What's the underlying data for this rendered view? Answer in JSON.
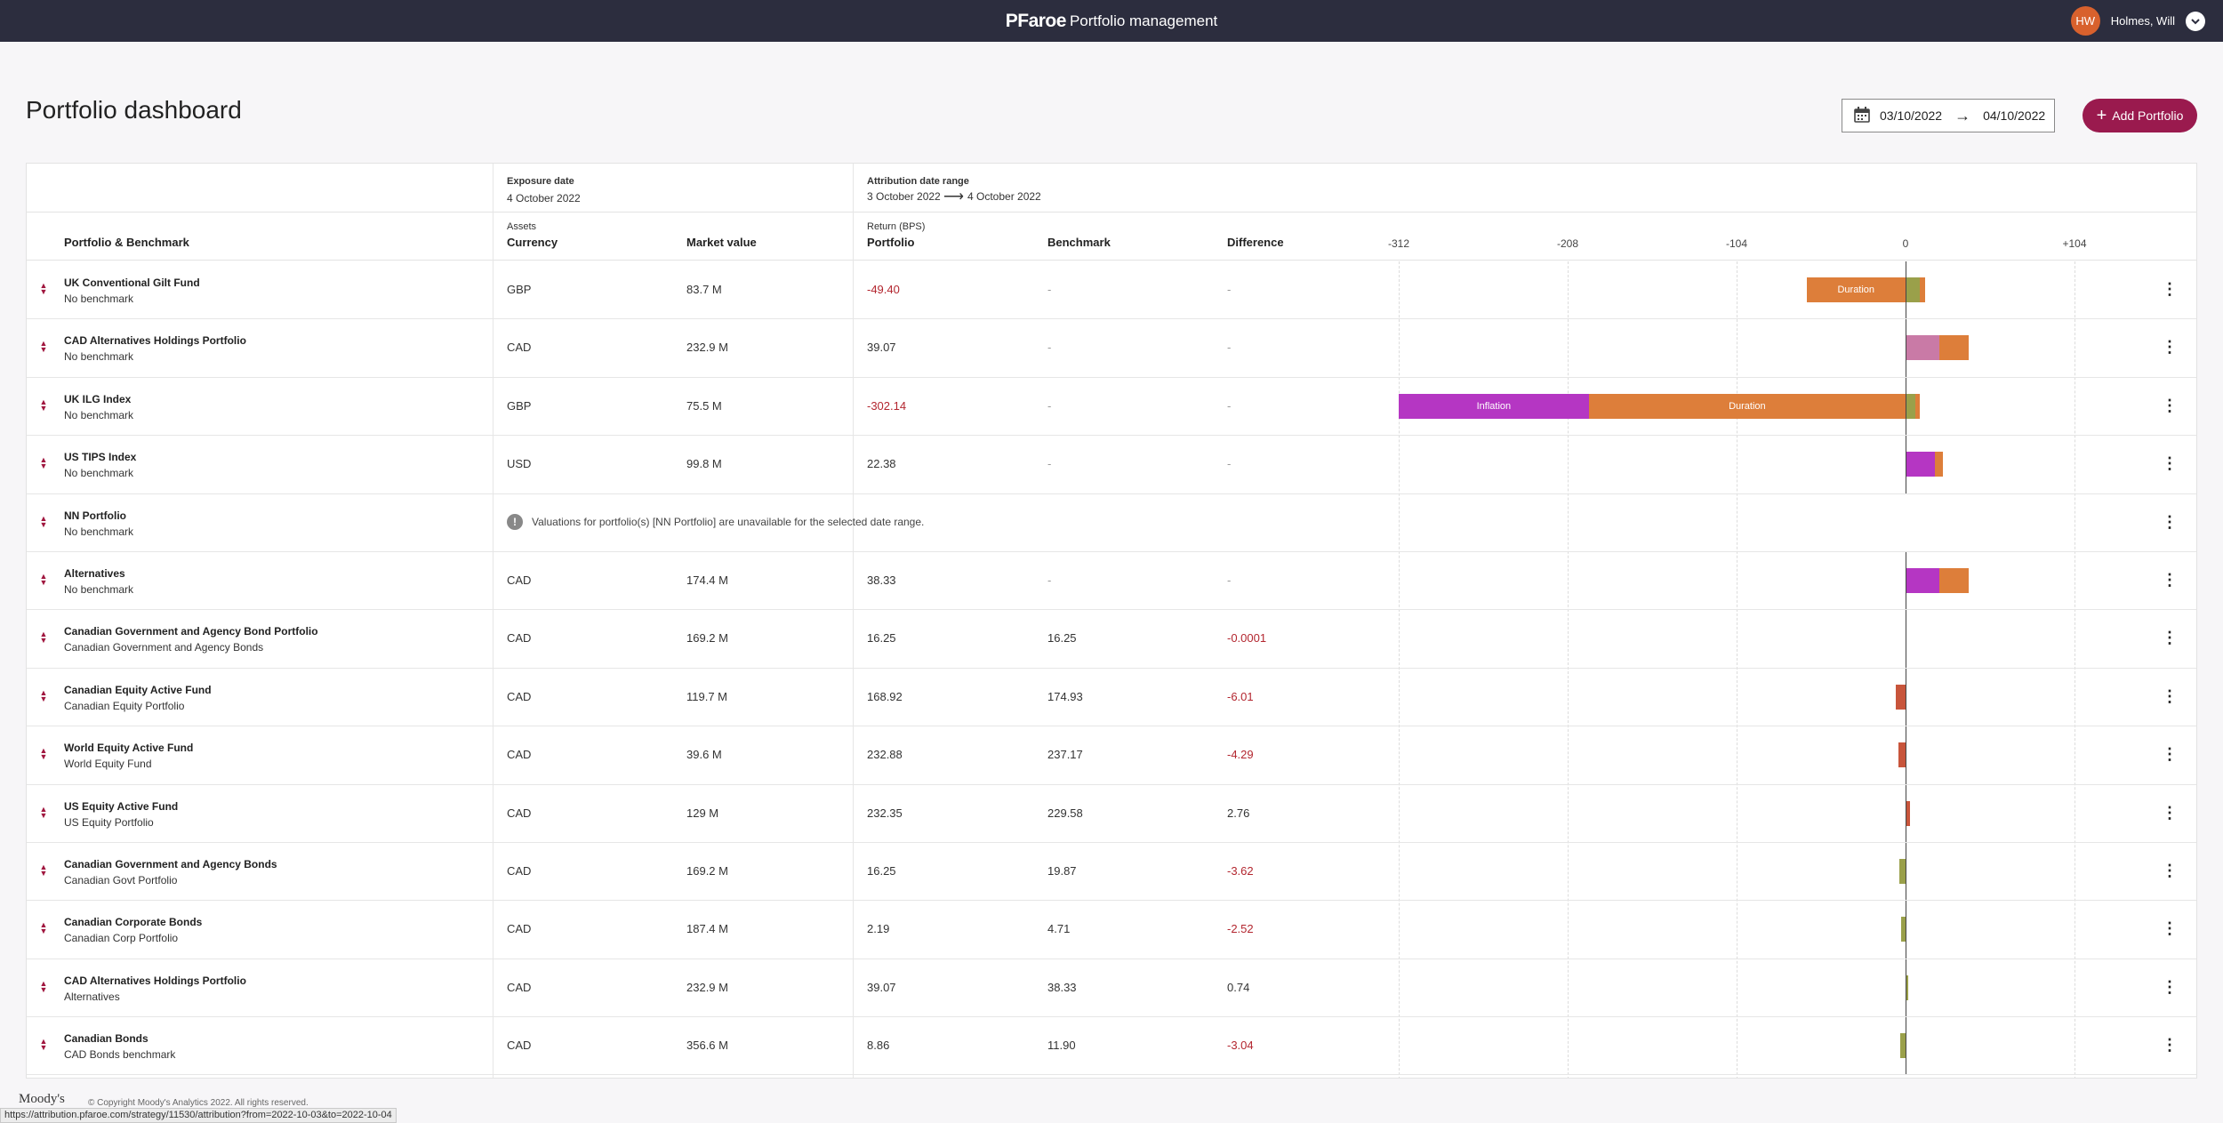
{
  "topbar": {
    "logo": "PFaroe",
    "title": "Portfolio management",
    "user_initials": "HW",
    "user_name": "Holmes, Will"
  },
  "page": {
    "title": "Portfolio dashboard"
  },
  "date_range": {
    "from": "03/10/2022",
    "to": "04/10/2022"
  },
  "add_button": "Add Portfolio",
  "header": {
    "exposure_label": "Exposure date",
    "exposure_date": "4 October 2022",
    "attribution_label": "Attribution date range",
    "attribution_from": "3 October 2022",
    "attribution_to": "4 October 2022",
    "portfolio_benchmark": "Portfolio & Benchmark",
    "assets": "Assets",
    "currency": "Currency",
    "market_value": "Market value",
    "return_bps": "Return (BPS)",
    "portfolio": "Portfolio",
    "benchmark": "Benchmark",
    "difference": "Difference",
    "ticks": [
      "-312",
      "-208",
      "-104",
      "0",
      "+104"
    ]
  },
  "colors": {
    "inflation": "#b536c3",
    "duration": "#dd7e3a",
    "pink": "#c97aa6",
    "red": "#c8553b",
    "olive": "#9aa04a",
    "accent": "#9a1a4e"
  },
  "rows": [
    {
      "name": "UK Conventional Gilt Fund",
      "bench": "No benchmark",
      "currency": "GBP",
      "mv": "83.7 M",
      "port": "-49.40",
      "bm": "-",
      "diff": "-",
      "port_neg": true,
      "diff_neg": false,
      "bars": [
        {
          "start": -61,
          "end": 0,
          "color": "duration",
          "label": "Duration"
        },
        {
          "start": 0,
          "end": 9,
          "color": "olive",
          "label": ""
        },
        {
          "start": 9,
          "end": 12,
          "color": "duration",
          "label": ""
        }
      ]
    },
    {
      "name": "CAD Alternatives Holdings Portfolio",
      "bench": "No benchmark",
      "currency": "CAD",
      "mv": "232.9 M",
      "port": "39.07",
      "bm": "-",
      "diff": "-",
      "port_neg": false,
      "diff_neg": false,
      "bars": [
        {
          "start": 0,
          "end": 21,
          "color": "pink",
          "label": ""
        },
        {
          "start": 21,
          "end": 39,
          "color": "duration",
          "label": ""
        }
      ]
    },
    {
      "name": "UK ILG Index",
      "bench": "No benchmark",
      "currency": "GBP",
      "mv": "75.5 M",
      "port": "-302.14",
      "bm": "-",
      "diff": "-",
      "port_neg": true,
      "diff_neg": false,
      "bars": [
        {
          "start": -312,
          "end": -195,
          "color": "inflation",
          "label": "Inflation"
        },
        {
          "start": -195,
          "end": 0,
          "color": "duration",
          "label": "Duration"
        },
        {
          "start": 0,
          "end": 6,
          "color": "olive",
          "label": ""
        },
        {
          "start": 6,
          "end": 9,
          "color": "duration",
          "label": ""
        }
      ]
    },
    {
      "name": "US TIPS Index",
      "bench": "No benchmark",
      "currency": "USD",
      "mv": "99.8 M",
      "port": "22.38",
      "bm": "-",
      "diff": "-",
      "port_neg": false,
      "diff_neg": false,
      "bars": [
        {
          "start": 0,
          "end": 18,
          "color": "inflation",
          "label": ""
        },
        {
          "start": 18,
          "end": 23,
          "color": "duration",
          "label": ""
        }
      ]
    },
    {
      "name": "NN Portfolio",
      "bench": "No benchmark",
      "warning": "Valuations for portfolio(s) [NN Portfolio] are unavailable for the selected date range.",
      "bars": []
    },
    {
      "name": "Alternatives",
      "bench": "No benchmark",
      "currency": "CAD",
      "mv": "174.4 M",
      "port": "38.33",
      "bm": "-",
      "diff": "-",
      "port_neg": false,
      "diff_neg": false,
      "bars": [
        {
          "start": 0,
          "end": 21,
          "color": "inflation",
          "label": ""
        },
        {
          "start": 21,
          "end": 39,
          "color": "duration",
          "label": ""
        }
      ]
    },
    {
      "name": "Canadian Government and Agency Bond Portfolio",
      "bench": "Canadian Government and Agency Bonds",
      "currency": "CAD",
      "mv": "169.2 M",
      "port": "16.25",
      "bm": "16.25",
      "diff": "-0.0001",
      "port_neg": false,
      "diff_neg": true,
      "bars": []
    },
    {
      "name": "Canadian Equity Active Fund",
      "bench": "Canadian Equity Portfolio",
      "currency": "CAD",
      "mv": "119.7 M",
      "port": "168.92",
      "bm": "174.93",
      "diff": "-6.01",
      "port_neg": false,
      "diff_neg": true,
      "bars": [
        {
          "start": -6.01,
          "end": 0,
          "color": "red",
          "label": ""
        }
      ]
    },
    {
      "name": "World Equity Active Fund",
      "bench": "World Equity Fund",
      "currency": "CAD",
      "mv": "39.6 M",
      "port": "232.88",
      "bm": "237.17",
      "diff": "-4.29",
      "port_neg": false,
      "diff_neg": true,
      "bars": [
        {
          "start": -4.29,
          "end": 0,
          "color": "red",
          "label": ""
        }
      ]
    },
    {
      "name": "US Equity Active Fund",
      "bench": "US Equity Portfolio",
      "currency": "CAD",
      "mv": "129 M",
      "port": "232.35",
      "bm": "229.58",
      "diff": "2.76",
      "port_neg": false,
      "diff_neg": false,
      "bars": [
        {
          "start": 0,
          "end": 2.76,
          "color": "red",
          "label": ""
        }
      ]
    },
    {
      "name": "Canadian Government and Agency Bonds",
      "bench": "Canadian Govt Portfolio",
      "currency": "CAD",
      "mv": "169.2 M",
      "port": "16.25",
      "bm": "19.87",
      "diff": "-3.62",
      "port_neg": false,
      "diff_neg": true,
      "bars": [
        {
          "start": -3.62,
          "end": 0,
          "color": "olive",
          "label": ""
        }
      ]
    },
    {
      "name": "Canadian Corporate Bonds",
      "bench": "Canadian Corp Portfolio",
      "currency": "CAD",
      "mv": "187.4 M",
      "port": "2.19",
      "bm": "4.71",
      "diff": "-2.52",
      "port_neg": false,
      "diff_neg": true,
      "bars": [
        {
          "start": -2.52,
          "end": 0,
          "color": "olive",
          "label": ""
        }
      ]
    },
    {
      "name": "CAD Alternatives Holdings Portfolio",
      "bench": "Alternatives",
      "currency": "CAD",
      "mv": "232.9 M",
      "port": "39.07",
      "bm": "38.33",
      "diff": "0.74",
      "port_neg": false,
      "diff_neg": false,
      "bars": [
        {
          "start": 0,
          "end": 0.74,
          "color": "olive",
          "label": ""
        }
      ]
    },
    {
      "name": "Canadian Bonds",
      "bench": "CAD Bonds benchmark",
      "currency": "CAD",
      "mv": "356.6 M",
      "port": "8.86",
      "bm": "11.90",
      "diff": "-3.04",
      "port_neg": false,
      "diff_neg": true,
      "bars": [
        {
          "start": -3.04,
          "end": 0,
          "color": "olive",
          "label": ""
        }
      ]
    }
  ],
  "footer": {
    "logo": "Moody's",
    "copyright": "© Copyright Moody's Analytics 2022. All rights reserved."
  },
  "status_url": "https://attribution.pfaroe.com/strategy/11530/attribution?from=2022-10-03&to=2022-10-04"
}
